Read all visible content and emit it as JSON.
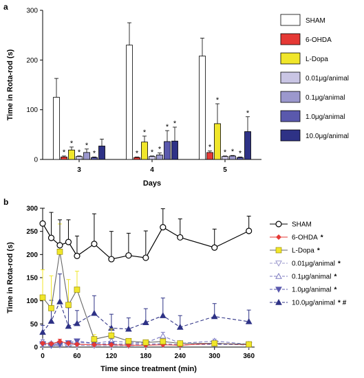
{
  "panels": [
    {
      "letter": "a"
    },
    {
      "letter": "b"
    }
  ],
  "chart_data": [
    {
      "type": "bar",
      "panel": "a",
      "xlabel": "Days",
      "ylabel": "Time in Rota-rod (s)",
      "ylim": [
        0,
        300
      ],
      "yticks": [
        "0",
        "100",
        "200",
        "300"
      ],
      "categories": [
        "3",
        "4",
        "5"
      ],
      "legend_position": "right",
      "series": [
        {
          "name": "SHAM",
          "color": "#ffffff",
          "values": [
            125,
            230,
            208
          ],
          "err": [
            38,
            45,
            36
          ],
          "stars": [
            false,
            false,
            false
          ]
        },
        {
          "name": "6-OHDA",
          "color": "#e53935",
          "values": [
            5,
            4,
            14
          ],
          "err": [
            2,
            1,
            3
          ],
          "stars": [
            true,
            true,
            true
          ]
        },
        {
          "name": "L-Dopa",
          "color": "#f0e62a",
          "values": [
            19,
            35,
            72
          ],
          "err": [
            6,
            12,
            40
          ],
          "stars": [
            true,
            true,
            true
          ]
        },
        {
          "name": "0.01μg/animal",
          "color": "#c9c5e4",
          "values": [
            6,
            6,
            6
          ],
          "err": [
            1,
            1,
            1
          ],
          "stars": [
            true,
            true,
            true
          ]
        },
        {
          "name": "0.1μg/animal",
          "color": "#9b98cd",
          "values": [
            14,
            9,
            7
          ],
          "err": [
            7,
            4,
            1
          ],
          "stars": [
            true,
            true,
            true
          ]
        },
        {
          "name": "1.0μg/animal",
          "color": "#5a59ad",
          "values": [
            4,
            36,
            4
          ],
          "err": [
            1,
            22,
            1
          ],
          "stars": [
            true,
            true,
            true
          ]
        },
        {
          "name": "10.0μg/animal",
          "color": "#2e3286",
          "values": [
            27,
            37,
            56
          ],
          "err": [
            14,
            28,
            30
          ],
          "stars": [
            false,
            true,
            true
          ]
        }
      ]
    },
    {
      "type": "line",
      "panel": "b",
      "xlabel": "Time since treatment (min)",
      "ylabel": "Time in Rota-rod (s)",
      "xlim": [
        0,
        370
      ],
      "ylim": [
        0,
        300
      ],
      "xticks": [
        "0",
        "60",
        "120",
        "180",
        "240",
        "300",
        "360"
      ],
      "yticks": [
        "0",
        "50",
        "100",
        "150",
        "200",
        "250",
        "300"
      ],
      "legend_position": "right",
      "series": [
        {
          "name": "SHAM",
          "mark": "",
          "color": "#000000",
          "marker": "circle",
          "dash": false,
          "x": [
            0,
            15,
            30,
            45,
            60,
            90,
            120,
            150,
            180,
            210,
            240,
            300,
            360
          ],
          "y": [
            267,
            236,
            220,
            227,
            197,
            223,
            190,
            198,
            193,
            259,
            237,
            215,
            251
          ],
          "err": [
            34,
            55,
            55,
            48,
            43,
            65,
            60,
            48,
            58,
            40,
            40,
            40,
            32
          ]
        },
        {
          "name": "6-OHDA",
          "mark": "*",
          "color": "#e53935",
          "marker": "diamond",
          "dash": false,
          "x": [
            0,
            15,
            30,
            45,
            60,
            90,
            120,
            150,
            180,
            210,
            240,
            300,
            360
          ],
          "y": [
            8,
            7,
            12,
            8,
            6,
            5,
            5,
            4,
            4,
            5,
            4,
            8,
            5
          ],
          "err": [
            3,
            3,
            5,
            3,
            2,
            2,
            2,
            2,
            2,
            2,
            2,
            3,
            2
          ]
        },
        {
          "name": "L-Dopa",
          "mark": "*",
          "color": "#f0e62a",
          "marker": "square",
          "dash": false,
          "x": [
            0,
            15,
            30,
            45,
            60,
            90,
            120,
            150,
            180,
            210,
            240,
            300,
            360
          ],
          "y": [
            107,
            84,
            206,
            91,
            124,
            17,
            25,
            13,
            10,
            12,
            8,
            8,
            6
          ],
          "err": [
            60,
            70,
            60,
            55,
            40,
            10,
            14,
            5,
            4,
            4,
            3,
            3,
            2
          ]
        },
        {
          "name": "0.01μg/animal",
          "mark": "*",
          "color": "#9b98cd",
          "marker": "triangle-down-open",
          "dash": true,
          "x": [
            0,
            15,
            30,
            45,
            60,
            90,
            120,
            150,
            180,
            210,
            240,
            300,
            360
          ],
          "y": [
            5,
            3,
            4,
            5,
            4,
            3,
            3,
            3,
            4,
            5,
            4,
            9,
            4
          ],
          "err": [
            2,
            1,
            1,
            2,
            1,
            1,
            1,
            1,
            1,
            2,
            1,
            3,
            1
          ]
        },
        {
          "name": "0.1μg/animal",
          "mark": "*",
          "color": "#7d7bc0",
          "marker": "triangle-up-open",
          "dash": true,
          "x": [
            0,
            15,
            30,
            45,
            60,
            90,
            120,
            150,
            180,
            210,
            240,
            300,
            360
          ],
          "y": [
            12,
            8,
            8,
            7,
            10,
            8,
            13,
            10,
            9,
            24,
            8,
            13,
            6
          ],
          "err": [
            4,
            3,
            3,
            3,
            4,
            3,
            5,
            4,
            3,
            8,
            3,
            4,
            2
          ]
        },
        {
          "name": "1.0μg/animal",
          "mark": "*",
          "color": "#5a59ad",
          "marker": "triangle-down",
          "dash": true,
          "x": [
            0,
            15,
            30,
            45,
            60,
            90,
            120,
            150,
            180,
            210,
            240,
            300,
            360
          ],
          "y": [
            7,
            4,
            6,
            9,
            13,
            8,
            6,
            7,
            6,
            7,
            5,
            6,
            5
          ],
          "err": [
            3,
            2,
            2,
            3,
            4,
            3,
            2,
            2,
            2,
            2,
            2,
            2,
            2
          ]
        },
        {
          "name": "10.0μg/animal",
          "mark": "* #",
          "color": "#2e3286",
          "marker": "triangle-up",
          "dash": true,
          "x": [
            0,
            15,
            30,
            45,
            60,
            90,
            120,
            150,
            180,
            210,
            240,
            300,
            360
          ],
          "y": [
            32,
            56,
            98,
            45,
            51,
            73,
            41,
            39,
            53,
            68,
            43,
            66,
            55
          ],
          "err": [
            15,
            45,
            60,
            40,
            28,
            38,
            30,
            24,
            30,
            38,
            25,
            28,
            25
          ]
        }
      ]
    }
  ]
}
